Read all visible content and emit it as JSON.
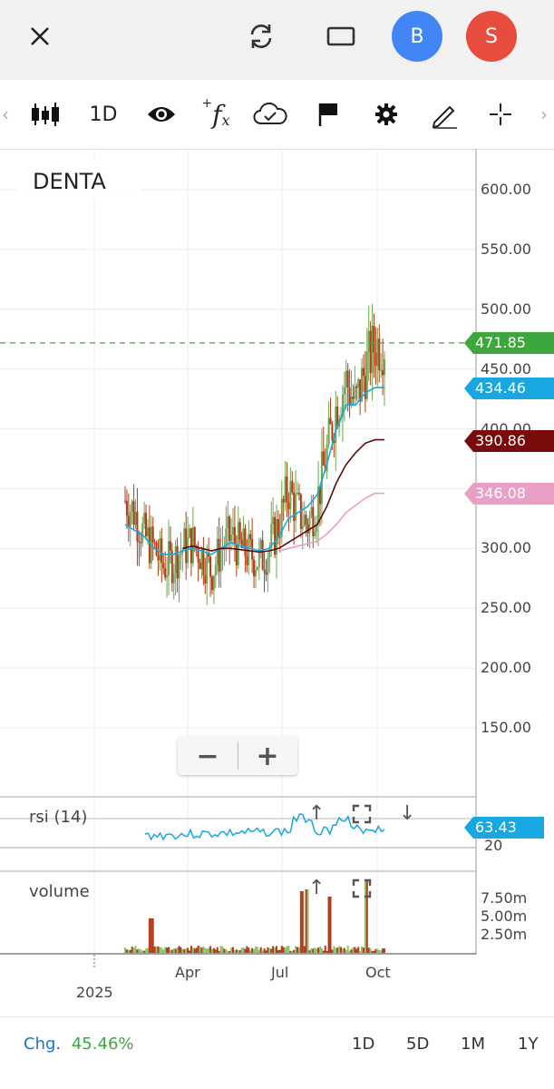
{
  "topbar": {
    "close_icon": "close-icon",
    "refresh_icon": "refresh-icon",
    "window_icon": "window-icon",
    "avatar_b": "B",
    "avatar_s": "S",
    "avatar_b_color": "#4285f4",
    "avatar_s_color": "#e74c3c"
  },
  "toolbar": {
    "interval": "1D",
    "icons": [
      "candlestick-icon",
      "eye-icon",
      "indicator-fx-icon",
      "cloud-check-icon",
      "flag-icon",
      "gear-icon",
      "pencil-icon",
      "crosshair-icon"
    ]
  },
  "symbol": "DENTA",
  "price_axis": [
    "600.00",
    "550.00",
    "500.00",
    "450.00",
    "400.00",
    "300.00",
    "250.00",
    "200.00",
    "150.00"
  ],
  "tags": {
    "last": {
      "value": "471.85",
      "color": "#3ca73c"
    },
    "ma_fast": {
      "value": "434.46",
      "color": "#18a7e0"
    },
    "ma_mid": {
      "value": "390.86",
      "color": "#7a0b0b"
    },
    "ma_slow": {
      "value": "346.08",
      "color": "#eaa0c4"
    }
  },
  "zoom": {
    "minus": "−",
    "plus": "+"
  },
  "rsi": {
    "label": "rsi (14)",
    "value": "63.43",
    "level": "20",
    "color": "#18a7e0"
  },
  "volume": {
    "label": "volume",
    "ticks": [
      "7.50m",
      "5.00m",
      "2.50m"
    ]
  },
  "time_axis": {
    "year": "2025",
    "months": [
      "Apr",
      "Jul",
      "Oct"
    ]
  },
  "change": {
    "label": "Chg.",
    "value": "45.46%",
    "color": "#3ca73c"
  },
  "periods": [
    "1D",
    "5D",
    "1M",
    "1Y"
  ],
  "chart_data": {
    "type": "line",
    "title": "DENTA",
    "xlabel": "",
    "ylabel": "",
    "ylim": [
      110,
      610
    ],
    "x_ticks": [
      "Apr",
      "Jul",
      "Oct"
    ],
    "series": [
      {
        "name": "price",
        "values": [
          340,
          330,
          310,
          300,
          285,
          290,
          300,
          305,
          295,
          280,
          300,
          310,
          300,
          295,
          290,
          300,
          320,
          350,
          330,
          320,
          340,
          380,
          420,
          440,
          420,
          450,
          470,
          471.85
        ]
      },
      {
        "name": "",
        "values": [
          320,
          315,
          310,
          300,
          295,
          295,
          298,
          300,
          298,
          295,
          300,
          305,
          302,
          300,
          298,
          300,
          310,
          325,
          330,
          335,
          345,
          370,
          400,
          420,
          420,
          430,
          434.46,
          434.46
        ]
      },
      {
        "name": "",
        "values": [
          null,
          null,
          null,
          null,
          null,
          null,
          300,
          302,
          300,
          298,
          300,
          300,
          299,
          298,
          297,
          298,
          300,
          305,
          310,
          315,
          320,
          335,
          355,
          370,
          380,
          388,
          390.86,
          390.86
        ]
      },
      {
        "name": "",
        "values": [
          null,
          null,
          null,
          null,
          null,
          null,
          null,
          null,
          null,
          null,
          null,
          null,
          null,
          null,
          null,
          null,
          298,
          300,
          302,
          304,
          306,
          312,
          320,
          330,
          336,
          342,
          346.08,
          346.08
        ]
      }
    ]
  }
}
